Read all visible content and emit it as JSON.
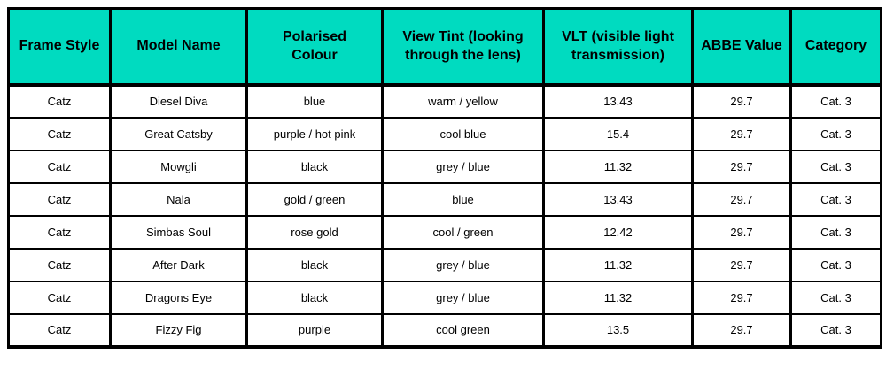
{
  "page": {
    "background_color": "#ffffff"
  },
  "table": {
    "header_bg_color": "#00dbc0",
    "border_color": "#000000",
    "columns": [
      "Frame Style",
      "Model Name",
      "Polarised\nColour",
      "View Tint (looking\nthrough the lens)",
      "VLT (visible light\ntransmission)",
      "ABBE Value",
      "Category"
    ],
    "rows": [
      [
        "Catz",
        "Diesel Diva",
        "blue",
        "warm / yellow",
        "13.43",
        "29.7",
        "Cat. 3"
      ],
      [
        "Catz",
        "Great Catsby",
        "purple / hot pink",
        "cool blue",
        "15.4",
        "29.7",
        "Cat. 3"
      ],
      [
        "Catz",
        "Mowgli",
        "black",
        "grey / blue",
        "11.32",
        "29.7",
        "Cat. 3"
      ],
      [
        "Catz",
        "Nala",
        "gold / green",
        "blue",
        "13.43",
        "29.7",
        "Cat. 3"
      ],
      [
        "Catz",
        "Simbas Soul",
        "rose gold",
        "cool / green",
        "12.42",
        "29.7",
        "Cat. 3"
      ],
      [
        "Catz",
        "After Dark",
        "black",
        "grey / blue",
        "11.32",
        "29.7",
        "Cat. 3"
      ],
      [
        "Catz",
        "Dragons Eye",
        "black",
        "grey / blue",
        "11.32",
        "29.7",
        "Cat. 3"
      ],
      [
        "Catz",
        "Fizzy Fig",
        "purple",
        "cool green",
        "13.5",
        "29.7",
        "Cat. 3"
      ]
    ]
  }
}
